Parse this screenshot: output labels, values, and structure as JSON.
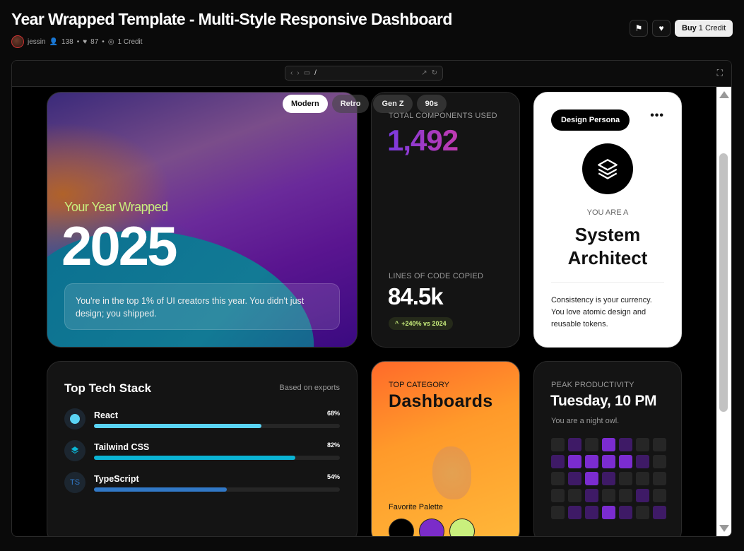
{
  "header": {
    "title": "Year Wrapped Template - Multi-Style Responsive Dashboard",
    "author": "jessin",
    "users": "138",
    "likes": "87",
    "credits": "1 Credit",
    "buy_label": "Buy",
    "buy_credit": "1 Credit"
  },
  "browser": {
    "url": "/"
  },
  "styles": [
    {
      "label": "Modern",
      "active": true
    },
    {
      "label": "Retro"
    },
    {
      "label": "Gen Z"
    },
    {
      "label": "90s"
    }
  ],
  "hero": {
    "subtitle": "Your Year Wrapped",
    "year": "2025",
    "message": "You're in the top 1% of UI creators this year. You didn't just design; you shipped."
  },
  "stats": {
    "components_label": "TOTAL COMPONENTS USED",
    "components_value": "1,492",
    "lines_label": "LINES OF CODE COPIED",
    "lines_value": "84.5k",
    "change": "+240% vs 2024"
  },
  "persona": {
    "tag": "Design Persona",
    "you_are": "YOU ARE A",
    "name_line1": "System",
    "name_line2": "Architect",
    "description": "Consistency is your currency. You love atomic design and reusable tokens."
  },
  "tech": {
    "title": "Top Tech Stack",
    "note": "Based on exports",
    "items": [
      {
        "name": "React",
        "percent": 68,
        "label": "68%",
        "color": "#5ad4f5",
        "icon": "react-icon"
      },
      {
        "name": "Tailwind CSS",
        "percent": 82,
        "label": "82%",
        "color": "#0ab4d4",
        "icon": "tailwind-icon"
      },
      {
        "name": "TypeScript",
        "percent": 54,
        "label": "54%",
        "color": "#3178c6",
        "icon": "typescript-icon",
        "icon_text": "TS"
      }
    ]
  },
  "category": {
    "label": "TOP CATEGORY",
    "value": "Dashboards",
    "palette_label": "Favorite Palette",
    "palette": [
      "#000000",
      "#7b2cc9",
      "#c9ef7d"
    ]
  },
  "peak": {
    "label": "PEAK PRODUCTIVITY",
    "value": "Tuesday, 10 PM",
    "subtitle": "You are a night owl.",
    "activity_levels": [
      [
        0,
        1,
        0,
        2,
        1,
        0,
        0
      ],
      [
        1,
        2,
        2,
        2,
        2,
        1,
        0
      ],
      [
        0,
        1,
        2,
        1,
        0,
        0,
        0
      ],
      [
        0,
        0,
        1,
        0,
        0,
        1,
        0
      ],
      [
        0,
        1,
        1,
        2,
        1,
        0,
        1
      ]
    ],
    "level_colors": [
      "#262626",
      "#3e1a66",
      "#7b2cd0"
    ]
  }
}
